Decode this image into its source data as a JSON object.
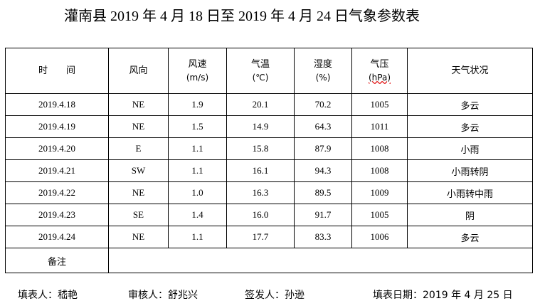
{
  "title": "灌南县 2019 年 4 月 18 日至 2019 年 4 月 24 日气象参数表",
  "headers": {
    "time": "时　　间",
    "wind_dir": "风向",
    "wind_speed": "风速",
    "wind_speed_unit": "(m/s)",
    "temp": "气温",
    "temp_unit": "(℃)",
    "humidity": "湿度",
    "humidity_unit": "(%)",
    "pressure": "气压",
    "pressure_unit": "(hPa)",
    "weather": "天气状况"
  },
  "rows": [
    {
      "date": "2019.4.18",
      "dir": "NE",
      "speed": "1.9",
      "temp": "20.1",
      "hum": "70.2",
      "pres": "1005",
      "weather": "多云"
    },
    {
      "date": "2019.4.19",
      "dir": "NE",
      "speed": "1.5",
      "temp": "14.9",
      "hum": "64.3",
      "pres": "1011",
      "weather": "多云"
    },
    {
      "date": "2019.4.20",
      "dir": "E",
      "speed": "1.1",
      "temp": "15.8",
      "hum": "87.9",
      "pres": "1008",
      "weather": "小雨"
    },
    {
      "date": "2019.4.21",
      "dir": "SW",
      "speed": "1.1",
      "temp": "16.1",
      "hum": "94.3",
      "pres": "1008",
      "weather": "小雨转阴"
    },
    {
      "date": "2019.4.22",
      "dir": "NE",
      "speed": "1.0",
      "temp": "16.3",
      "hum": "89.5",
      "pres": "1009",
      "weather": "小雨转中雨"
    },
    {
      "date": "2019.4.23",
      "dir": "SE",
      "speed": "1.4",
      "temp": "16.0",
      "hum": "91.7",
      "pres": "1005",
      "weather": "阴"
    },
    {
      "date": "2019.4.24",
      "dir": "NE",
      "speed": "1.1",
      "temp": "17.7",
      "hum": "83.3",
      "pres": "1006",
      "weather": "多云"
    }
  ],
  "remark_label": "备注",
  "remark_value": "",
  "footer": {
    "filler": "填表人：嵇艳",
    "reviewer": "审核人：舒兆兴",
    "issuer": "签发人：孙逊",
    "date": "填表日期：2019 年 4 月 25 日"
  }
}
